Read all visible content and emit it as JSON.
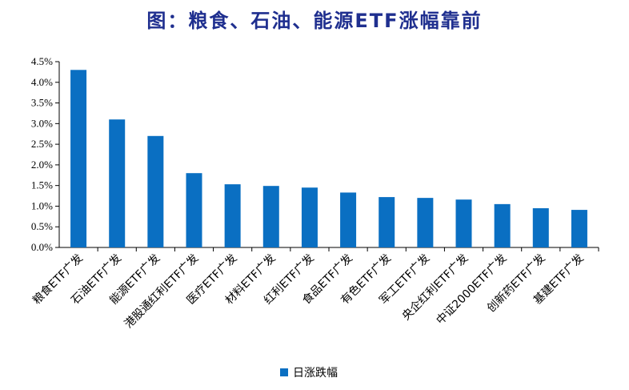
{
  "title": "图：粮食、石油、能源ETF涨幅靠前",
  "colors": {
    "bar": "#0A6FC2",
    "title": "#1F2F8F",
    "axis": "#000000"
  },
  "chart_data": {
    "type": "bar",
    "categories": [
      "粮食ETF广发",
      "石油ETF广发",
      "能源ETF广发",
      "港股通红利ETF广发",
      "医疗ETF广发",
      "材料ETF广发",
      "红利ETF广发",
      "食品ETF广发",
      "有色ETF广发",
      "军工ETF广发",
      "央企红利ETF广发",
      "中证2000ETF广发",
      "创新药ETF广发",
      "基建ETF广发"
    ],
    "series": [
      {
        "name": "日涨跌幅",
        "values": [
          4.3,
          3.1,
          2.7,
          1.8,
          1.53,
          1.49,
          1.45,
          1.33,
          1.22,
          1.2,
          1.16,
          1.05,
          0.95,
          0.91
        ]
      }
    ],
    "y_ticks": [
      "0.0%",
      "0.5%",
      "1.0%",
      "1.5%",
      "2.0%",
      "2.5%",
      "3.0%",
      "3.5%",
      "4.0%",
      "4.5%"
    ],
    "ylim": [
      0,
      4.5
    ],
    "legend_position": "bottom",
    "grid": false
  }
}
